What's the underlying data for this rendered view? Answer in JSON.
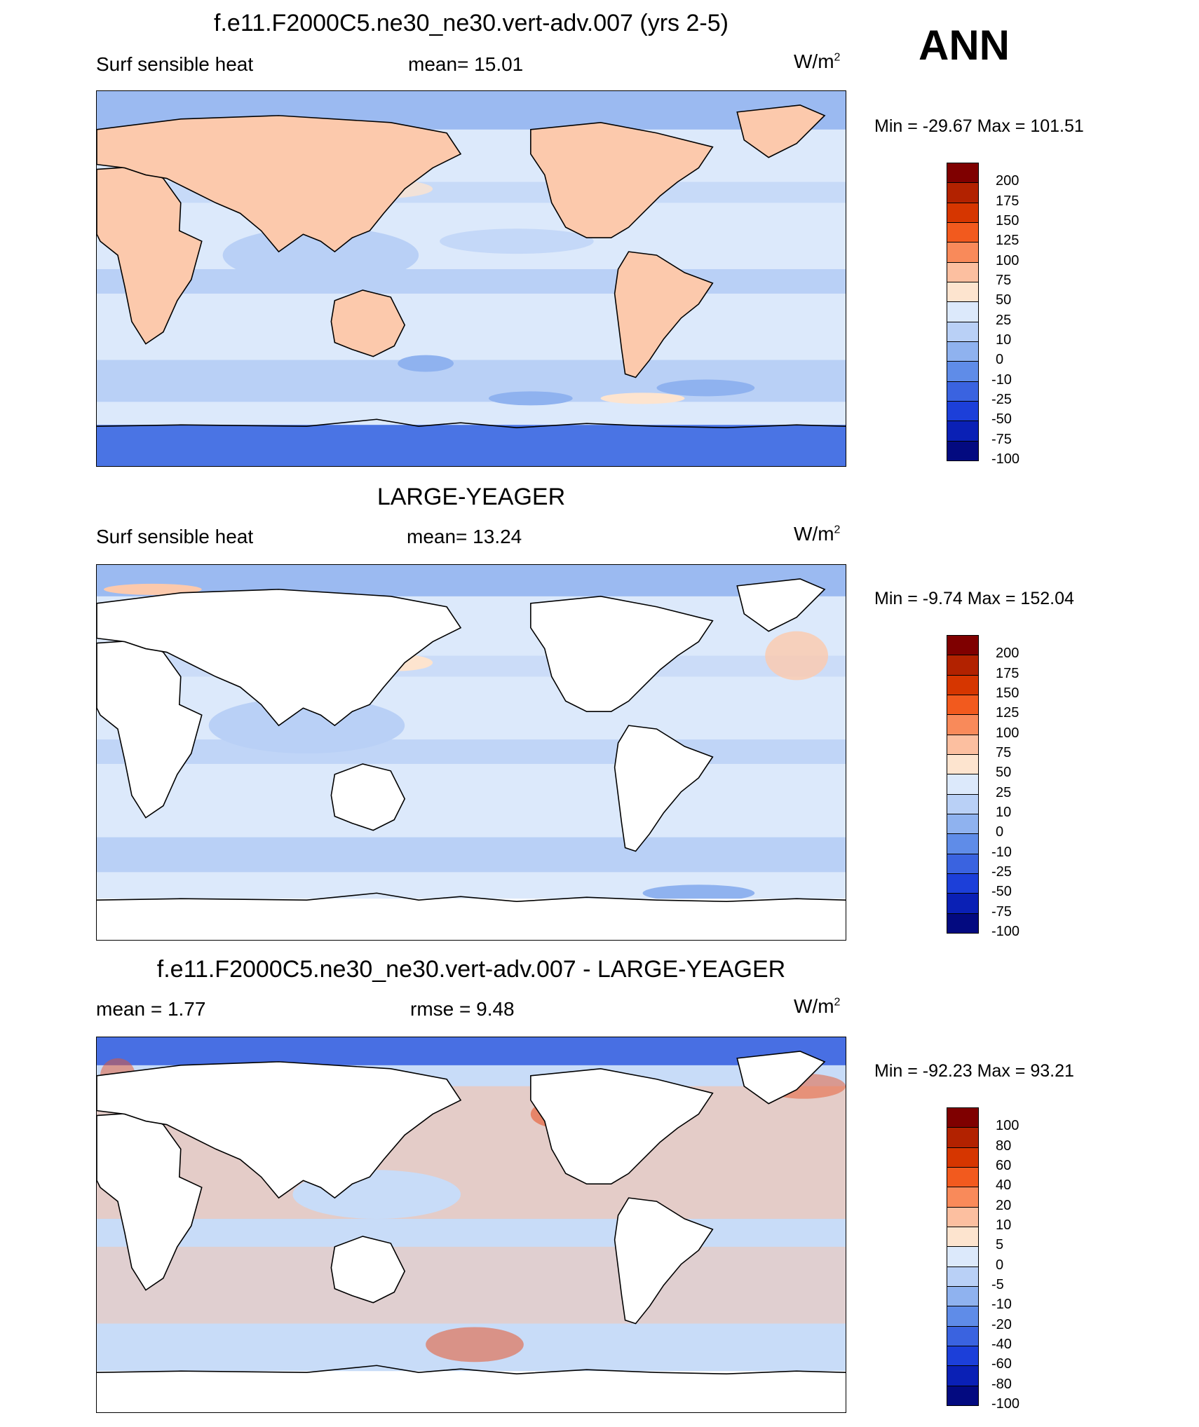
{
  "season": "ANN",
  "units_base": "W/m",
  "units_exp": "2",
  "panels": [
    {
      "id": "test",
      "title": "f.e11.F2000C5.ne30_ne30.vert-adv.007 (yrs 2-5)",
      "left": "Surf sensible heat",
      "center": "mean=  15.01",
      "minmax": "Min = -29.67 Max = 101.51",
      "levels": [
        "200",
        "175",
        "150",
        "125",
        "100",
        "75",
        "50",
        "25",
        "10",
        "0",
        "-10",
        "-25",
        "-50",
        "-75",
        "-100"
      ]
    },
    {
      "id": "obs",
      "title": "LARGE-YEAGER",
      "left": "Surf sensible heat",
      "center": "mean=  13.24",
      "minmax": "Min =  -9.74 Max = 152.04",
      "levels": [
        "200",
        "175",
        "150",
        "125",
        "100",
        "75",
        "50",
        "25",
        "10",
        "0",
        "-10",
        "-25",
        "-50",
        "-75",
        "-100"
      ]
    },
    {
      "id": "diff",
      "title": "f.e11.F2000C5.ne30_ne30.vert-adv.007 - LARGE-YEAGER",
      "left": "mean =   1.77",
      "center": "rmse =   9.48",
      "minmax": "Min = -92.23 Max =  93.21",
      "levels": [
        "100",
        "80",
        "60",
        "40",
        "20",
        "10",
        "5",
        "0",
        "-5",
        "-10",
        "-20",
        "-40",
        "-60",
        "-80",
        "-100"
      ]
    }
  ],
  "colors": {
    "colorbar": [
      "#7f0000",
      "#b22200",
      "#d63600",
      "#f25a1e",
      "#f98a5a",
      "#fcbfa0",
      "#fde4cf",
      "#dce9fb",
      "#b9d0f6",
      "#8fb2ef",
      "#5f8ce8",
      "#3a63e0",
      "#1c3fd9",
      "#0a20b5",
      "#030a80"
    ],
    "ocean_base": "#dce9fb",
    "ocean_cool": "#b9d0f6",
    "ocean_warm": "#fde4cf",
    "land_warm": "#fcc9ac",
    "ice_cold": "#4a74e4",
    "ice_mid": "#8fb2ef",
    "diff_warm": "#fcbfa0",
    "diff_hot": "#e8552a",
    "diff_cool": "#c8dcf8",
    "diff_cold": "#3a63e0"
  }
}
